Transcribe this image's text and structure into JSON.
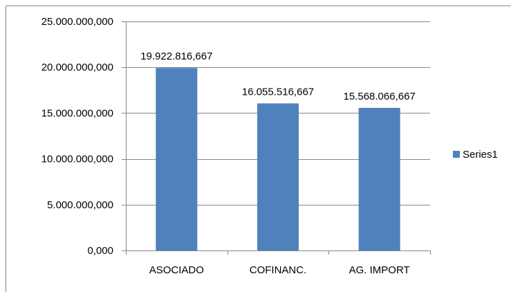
{
  "chart_data": {
    "type": "bar",
    "title": "",
    "xlabel": "",
    "ylabel": "",
    "categories": [
      "ASOCIADO",
      "COFINANC.",
      "AG. IMPORT"
    ],
    "series": [
      {
        "name": "Series1",
        "values": [
          19922816667,
          16055516667,
          15568066667
        ],
        "value_labels": [
          "19.922.816,667",
          "16.055.516,667",
          "15.568.066,667"
        ],
        "color": "#4F81BD"
      }
    ],
    "ylim": [
      0,
      25000000000
    ],
    "yticks": [
      0,
      5000000000,
      10000000000,
      15000000000,
      20000000000,
      25000000000
    ],
    "ytick_labels": [
      "0,000",
      "5.000.000,000",
      "10.000.000,000",
      "15.000.000,000",
      "20.000.000,000",
      "25.000.000,000"
    ],
    "grid": true,
    "legend": "right",
    "colors": {
      "bar": "#4F81BD",
      "grid": "#868686",
      "axis": "#868686",
      "frame": "#868686"
    }
  }
}
